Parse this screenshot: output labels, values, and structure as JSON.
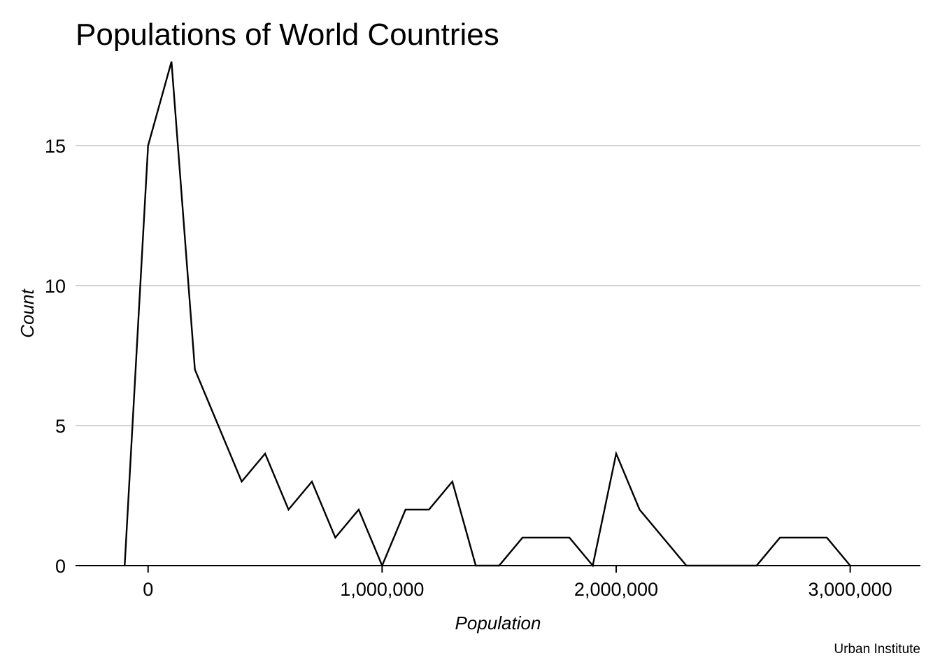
{
  "chart_data": {
    "type": "line",
    "title": "Populations of World Countries",
    "xlabel": "Population",
    "ylabel": "Count",
    "caption": "Urban Institute",
    "xlim": [
      -310000,
      3300000
    ],
    "ylim": [
      0,
      18
    ],
    "x_ticks": [
      0,
      1000000,
      2000000,
      3000000
    ],
    "x_tick_labels": [
      "0",
      "1,000,000",
      "2,000,000",
      "3,000,000"
    ],
    "y_ticks": [
      0,
      5,
      10,
      15
    ],
    "y_tick_labels": [
      "0",
      "5",
      "10",
      "15"
    ],
    "grid": "horizontal",
    "series": [
      {
        "x": [
          -100000,
          0,
          100000,
          200000,
          300000,
          400000,
          500000,
          600000,
          700000,
          800000,
          900000,
          1000000,
          1100000,
          1200000,
          1300000,
          1400000,
          1500000,
          1600000,
          1700000,
          1800000,
          1900000,
          2000000,
          2100000,
          2200000,
          2300000,
          2400000,
          2500000,
          2600000,
          2700000,
          2800000,
          2900000,
          3000000
        ],
        "values": [
          0,
          15,
          18,
          7,
          5,
          3,
          4,
          2,
          3,
          1,
          2,
          0,
          2,
          2,
          3,
          0,
          0,
          1,
          1,
          1,
          0,
          4,
          2,
          1,
          0,
          0,
          0,
          0,
          1,
          1,
          1,
          0
        ]
      }
    ]
  }
}
